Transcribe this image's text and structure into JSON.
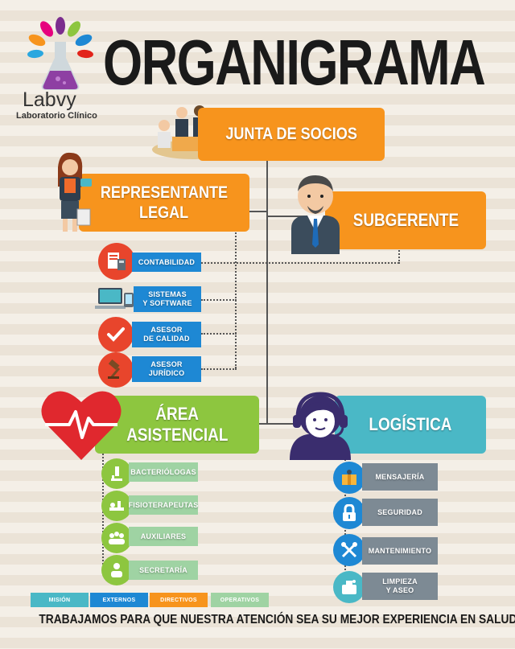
{
  "logo": {
    "name": "Labvy",
    "subtitle": "Laboratorio Clínico"
  },
  "title": "ORGANIGRAMA",
  "nodes": {
    "junta": "JUNTA DE SOCIOS",
    "representante_line1": "REPRESENTANTE",
    "representante_line2": "LEGAL",
    "subgerente": "SUBGERENTE",
    "area_line1": "ÁREA",
    "area_line2": "ASISTENCIAL",
    "logistica": "LOGÍSTICA"
  },
  "external": {
    "contabilidad": "CONTABILIDAD",
    "sistemas_line1": "SISTEMAS",
    "sistemas_line2": "Y SOFTWARE",
    "calidad_line1": "ASESOR",
    "calidad_line2": "DE CALIDAD",
    "juridico_line1": "ASESOR",
    "juridico_line2": "JURÍDICO"
  },
  "asistencial": [
    "BACTERIÓLOGAS",
    "FISIOTERAPEUTAS",
    "AUXILIARES",
    "SECRETARÍA"
  ],
  "logistica_items": {
    "mensajeria": "MENSAJERÍA",
    "seguridad": "SEGURIDAD",
    "mantenimiento": "MANTENIMIENTO",
    "limpieza_line1": "LIMPIEZA",
    "limpieza_line2": "Y ASEO"
  },
  "legend": [
    "MISIÓN",
    "EXTERNOS",
    "DIRECTIVOS",
    "OPERATIVOS"
  ],
  "footer": "TRABAJAMOS PARA QUE NUESTRA ATENCIÓN SEA SU MEJOR EXPERIENCIA EN SALUD",
  "colors": {
    "orange": "#f7941d",
    "blue": "#1e88d4",
    "green": "#8dc63f",
    "teal": "#4ab8c6",
    "light_green": "#9fd3a3",
    "slate": "#7d8a94",
    "red_icon": "#e8452c",
    "heart": "#e0282e",
    "title": "#1a1a1a"
  }
}
